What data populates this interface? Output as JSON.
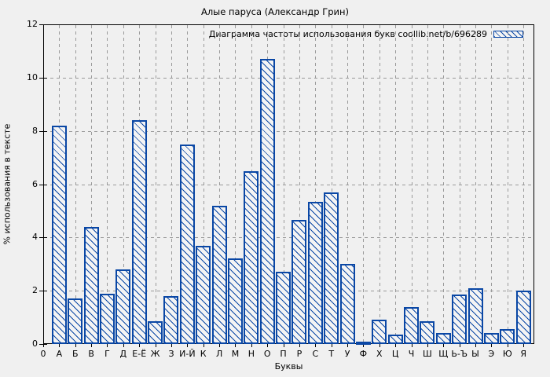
{
  "chart_data": {
    "type": "bar",
    "title": "Алые паруса (Александр Грин)",
    "legend": "Диаграмма частоты использования букв coollib.net/b/696289",
    "xlabel": "Буквы",
    "ylabel": "% использования в тексте",
    "origin_label": "0",
    "categories": [
      "А",
      "Б",
      "В",
      "Г",
      "Д",
      "Е-Ё",
      "Ж",
      "З",
      "И-Й",
      "К",
      "Л",
      "М",
      "Н",
      "О",
      "П",
      "Р",
      "С",
      "Т",
      "У",
      "Ф",
      "Х",
      "Ц",
      "Ч",
      "Ш",
      "Щ",
      "Ь-Ъ",
      "Ы",
      "Э",
      "Ю",
      "Я"
    ],
    "values": [
      8.2,
      1.7,
      4.4,
      1.9,
      2.8,
      8.4,
      0.85,
      1.8,
      7.5,
      3.7,
      5.2,
      3.2,
      6.5,
      10.7,
      2.7,
      4.65,
      5.35,
      5.7,
      3.0,
      0.1,
      0.9,
      0.35,
      1.4,
      0.85,
      0.4,
      1.85,
      2.1,
      0.4,
      0.55,
      2.0
    ],
    "yticks": [
      0,
      2,
      4,
      6,
      8,
      10,
      12
    ],
    "ylim": [
      0,
      12
    ],
    "grid": "dashed both axes",
    "legend_position": "top-right inside plot",
    "bar_color": "#0a47a5",
    "bar_hatch": "\\",
    "background_color": "#f0f0f0"
  }
}
